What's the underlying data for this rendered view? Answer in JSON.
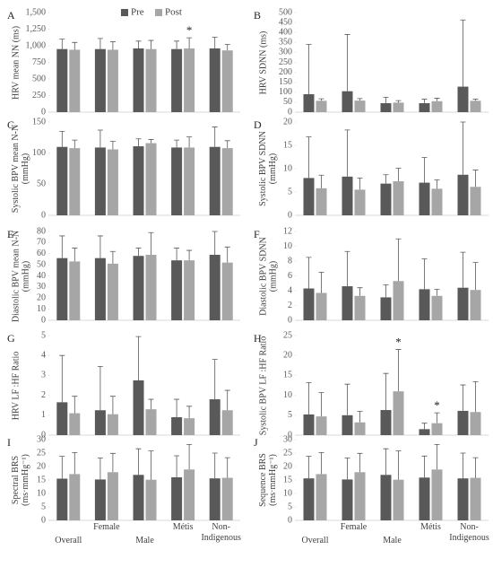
{
  "chart_data": [
    {
      "type": "bar",
      "label": "A",
      "y_label": "HRV mean NN (ms)",
      "ylim": [
        0,
        1500
      ],
      "yticks": [
        0,
        250,
        500,
        750,
        {
          "value": 1000,
          "label": "1,000"
        },
        {
          "value": 1250,
          "label": "1,250"
        },
        {
          "value": 1500,
          "label": "1,500"
        }
      ],
      "legend": "top",
      "series": [
        {
          "name": "Pre",
          "color": "#595959",
          "values": [
            950,
            950,
            960,
            950,
            960
          ],
          "errors": [
            150,
            160,
            110,
            120,
            170
          ]
        },
        {
          "name": "Post",
          "color": "#a6a6a6",
          "values": [
            940,
            940,
            950,
            960,
            930
          ],
          "errors": [
            110,
            120,
            130,
            160,
            90
          ]
        }
      ],
      "annotations": [
        {
          "text": "*",
          "category": "Métis",
          "series": 1
        }
      ]
    },
    {
      "type": "bar",
      "label": "B",
      "y_label": "HRV SDNN (ms)",
      "ylim": [
        0,
        500
      ],
      "yticks": [
        0,
        50,
        100,
        150,
        200,
        250,
        300,
        350,
        400,
        450,
        500
      ],
      "series": [
        {
          "color": "#595959",
          "values": [
            90,
            105,
            45,
            45,
            128
          ],
          "errors": [
            250,
            285,
            30,
            20,
            335
          ]
        },
        {
          "color": "#a6a6a6",
          "values": [
            57,
            58,
            48,
            55,
            57
          ],
          "errors": [
            10,
            10,
            10,
            15,
            8
          ]
        }
      ]
    },
    {
      "type": "bar",
      "label": "C",
      "y_label": "Systolic BPV mean N-N (mmHg)",
      "ylim": [
        0,
        150
      ],
      "yticks": [
        0,
        50,
        100,
        150
      ],
      "series": [
        {
          "color": "#595959",
          "values": [
            110,
            109,
            111,
            109,
            110
          ],
          "errors": [
            25,
            28,
            12,
            12,
            32
          ]
        },
        {
          "color": "#a6a6a6",
          "values": [
            108,
            106,
            116,
            109,
            108
          ],
          "errors": [
            13,
            13,
            6,
            17,
            12
          ]
        }
      ]
    },
    {
      "type": "bar",
      "label": "D",
      "y_label": "Systolic BPV SDNN (mmHg)",
      "ylim": [
        0,
        20
      ],
      "yticks": [
        0,
        5,
        10,
        15,
        20
      ],
      "series": [
        {
          "color": "#595959",
          "values": [
            8,
            8.3,
            6.8,
            7,
            8.7
          ],
          "errors": [
            8.8,
            10,
            1.9,
            5.4,
            11.3
          ]
        },
        {
          "color": "#a6a6a6",
          "values": [
            5.8,
            5.5,
            7.3,
            5.7,
            6.1
          ],
          "errors": [
            2.8,
            2.5,
            2.8,
            1.9,
            3.6
          ]
        }
      ]
    },
    {
      "type": "bar",
      "label": "E",
      "y_label": "Diastolic BPV mean N-N (mmHg)",
      "ylim": [
        0,
        80
      ],
      "yticks": [
        0,
        10,
        20,
        30,
        40,
        50,
        60,
        70,
        80
      ],
      "series": [
        {
          "color": "#595959",
          "values": [
            56,
            56,
            58,
            54,
            59
          ],
          "errors": [
            20,
            20,
            7,
            11,
            21
          ]
        },
        {
          "color": "#a6a6a6",
          "values": [
            53,
            51,
            59,
            54,
            52
          ],
          "errors": [
            12,
            11,
            20,
            9,
            14
          ]
        }
      ]
    },
    {
      "type": "bar",
      "label": "F",
      "y_label": "Diastolic BPV SDNN (mmHg)",
      "ylim": [
        0,
        12
      ],
      "yticks": [
        0,
        2,
        4,
        6,
        8,
        10,
        12
      ],
      "series": [
        {
          "color": "#595959",
          "values": [
            4.3,
            4.6,
            3.1,
            4.2,
            4.4
          ],
          "errors": [
            4.2,
            4.7,
            1.7,
            4.1,
            4.8
          ]
        },
        {
          "color": "#a6a6a6",
          "values": [
            3.7,
            3.3,
            5.3,
            3.3,
            4.1
          ],
          "errors": [
            2.8,
            1.1,
            5.7,
            0.9,
            3.7
          ]
        }
      ]
    },
    {
      "type": "bar",
      "label": "G",
      "y_label": "HRV LF :HF Ratio",
      "ylim": [
        0,
        5
      ],
      "yticks": [
        0,
        1,
        2,
        3,
        4,
        5
      ],
      "series": [
        {
          "color": "#595959",
          "values": [
            1.65,
            1.25,
            2.75,
            0.9,
            1.8
          ],
          "errors": [
            2.35,
            2.2,
            2.2,
            0.9,
            2
          ]
        },
        {
          "color": "#a6a6a6",
          "values": [
            1.1,
            1.05,
            1.3,
            0.85,
            1.25
          ],
          "errors": [
            0.85,
            0.9,
            0.5,
            0.6,
            1
          ]
        }
      ]
    },
    {
      "type": "bar",
      "label": "H",
      "y_label": "Systolic BPV LF :HF Ratio",
      "ylim": [
        0,
        25
      ],
      "yticks": [
        0,
        5,
        10,
        15,
        20,
        25
      ],
      "series": [
        {
          "color": "#595959",
          "values": [
            5.2,
            5,
            6.3,
            1.5,
            6.1
          ],
          "errors": [
            8,
            7.8,
            9.2,
            1.5,
            6.5
          ]
        },
        {
          "color": "#a6a6a6",
          "values": [
            4.7,
            3.2,
            11,
            3,
            5.8
          ],
          "errors": [
            6,
            2.8,
            10.5,
            2.6,
            7.6
          ]
        }
      ],
      "annotations": [
        {
          "text": "*",
          "category": "Male",
          "series": 1
        },
        {
          "text": "*",
          "category": "Métis",
          "series": 1
        }
      ]
    },
    {
      "type": "bar",
      "label": "I",
      "y_label": "Spectral BRS (ms·mmHg⁻¹)",
      "ylim": [
        0,
        30
      ],
      "yticks": [
        0,
        5,
        10,
        15,
        20,
        25,
        30
      ],
      "categories": [
        "Overall",
        "Female",
        "Male",
        "Métis",
        "Non-Indigenous"
      ],
      "series": [
        {
          "color": "#595959",
          "values": [
            15.5,
            15.2,
            16.9,
            16,
            15.6
          ],
          "errors": [
            8.3,
            8,
            9.7,
            8,
            9.4
          ]
        },
        {
          "color": "#a6a6a6",
          "values": [
            17.2,
            17.9,
            15.1,
            18.9,
            15.8
          ],
          "errors": [
            8,
            7,
            10.7,
            9.3,
            7.5
          ]
        }
      ]
    },
    {
      "type": "bar",
      "label": "J",
      "y_label": "Sequence BRS (ms·mmHg⁻¹)",
      "ylim": [
        0,
        30
      ],
      "yticks": [
        0,
        5,
        10,
        15,
        20,
        25,
        30
      ],
      "categories": [
        "Overall",
        "Female",
        "Male",
        "Métis",
        "Non-Indigenous"
      ],
      "series": [
        {
          "color": "#595959",
          "values": [
            15.6,
            15.2,
            16.9,
            15.9,
            15.6
          ],
          "errors": [
            8.2,
            8,
            9.7,
            8,
            9.4
          ]
        },
        {
          "color": "#a6a6a6",
          "values": [
            17.2,
            17.9,
            15.1,
            18.9,
            15.8
          ],
          "errors": [
            8,
            7,
            10.7,
            9.3,
            7.5
          ]
        }
      ]
    }
  ]
}
